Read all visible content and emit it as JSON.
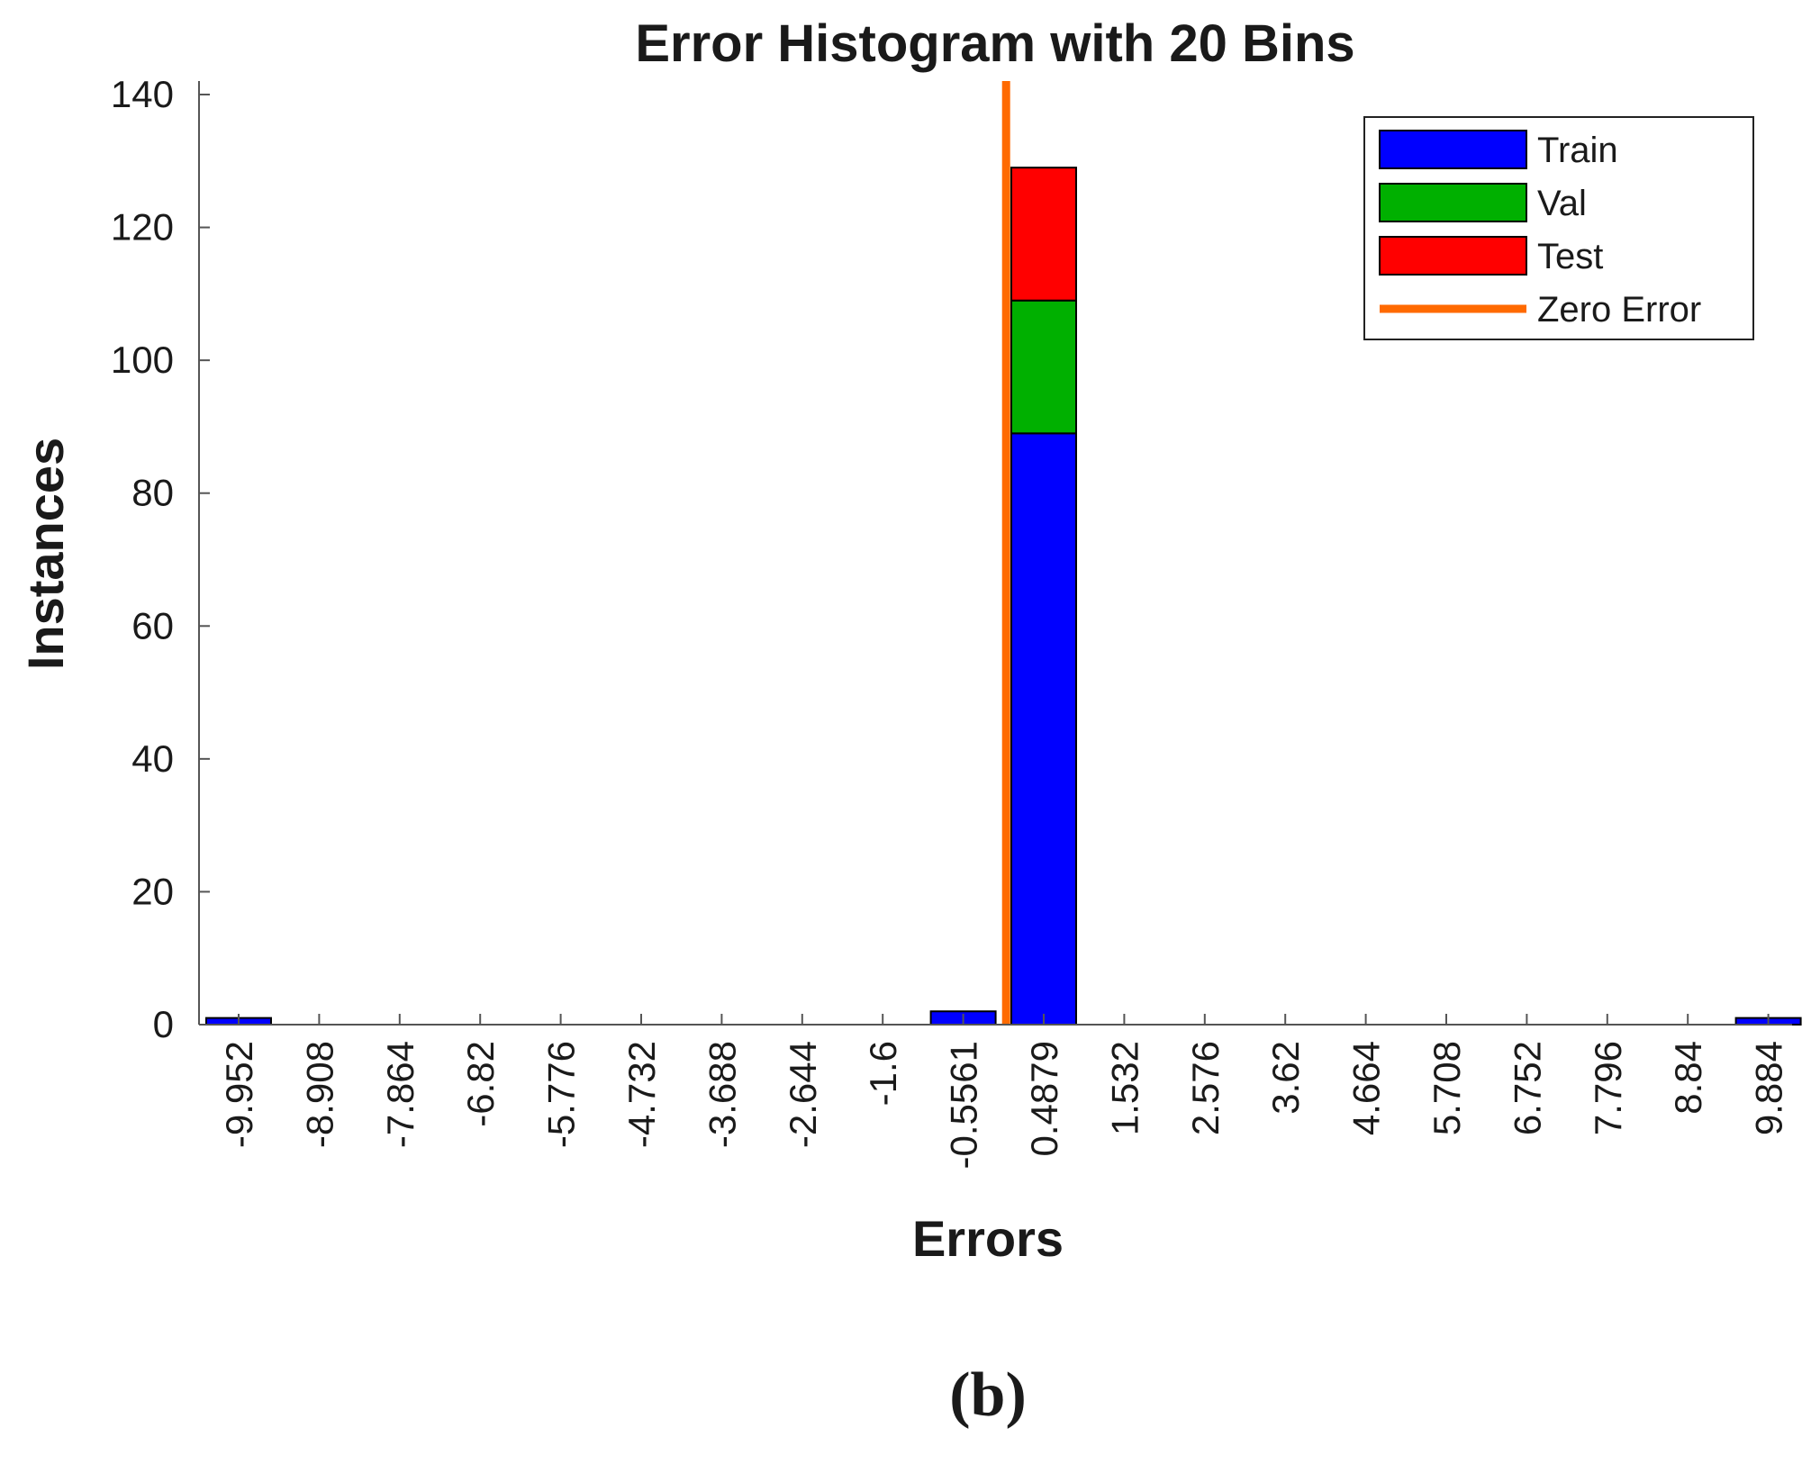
{
  "panel_label": "(b)",
  "chart_data": {
    "type": "bar",
    "stacked": true,
    "title": "Error Histogram with 20 Bins",
    "xlabel": "Errors",
    "ylabel": "Instances",
    "ylim": [
      0,
      140
    ],
    "yticks": [
      0,
      20,
      40,
      60,
      80,
      100,
      120,
      140
    ],
    "categories": [
      "-9.952",
      "-8.908",
      "-7.864",
      "-6.82",
      "-5.776",
      "-4.732",
      "-3.688",
      "-2.644",
      "-1.6",
      "-0.5561",
      "0.4879",
      "1.532",
      "2.576",
      "3.62",
      "4.664",
      "5.708",
      "6.752",
      "7.796",
      "8.84",
      "9.884"
    ],
    "series": [
      {
        "name": "Train",
        "color": "#0000ff",
        "values": [
          1,
          0,
          0,
          0,
          0,
          0,
          0,
          0,
          0,
          2,
          89,
          0,
          0,
          0,
          0,
          0,
          0,
          0,
          0,
          1
        ]
      },
      {
        "name": "Val",
        "color": "#00b000",
        "values": [
          0,
          0,
          0,
          0,
          0,
          0,
          0,
          0,
          0,
          0,
          20,
          0,
          0,
          0,
          0,
          0,
          0,
          0,
          0,
          0
        ]
      },
      {
        "name": "Test",
        "color": "#ff0000",
        "values": [
          0,
          0,
          0,
          0,
          0,
          0,
          0,
          0,
          0,
          0,
          20,
          0,
          0,
          0,
          0,
          0,
          0,
          0,
          0,
          0
        ]
      }
    ],
    "zero_error": {
      "name": "Zero Error",
      "x": 0,
      "color": "#ff6a00"
    },
    "legend_position": "top-right",
    "grid": false
  }
}
